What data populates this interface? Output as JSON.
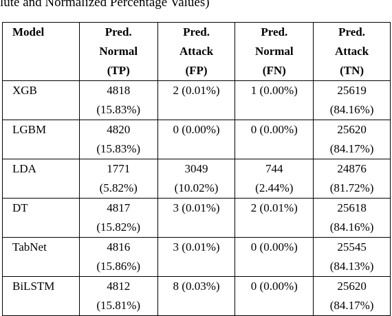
{
  "caption": "lute and Normalized Percentage Values)",
  "table": {
    "headers": [
      {
        "lines": [
          "Model"
        ]
      },
      {
        "lines": [
          "Pred.",
          "Normal",
          "(TP)"
        ]
      },
      {
        "lines": [
          "Pred.",
          "Attack",
          "(FP)"
        ]
      },
      {
        "lines": [
          "Pred.",
          "Normal",
          "(FN)"
        ]
      },
      {
        "lines": [
          "Pred.",
          "Attack",
          "(TN)"
        ]
      }
    ],
    "rows": [
      {
        "model": "XGB",
        "cells": [
          [
            "4818",
            "(15.83%)"
          ],
          [
            "2 (0.01%)"
          ],
          [
            "1 (0.00%)"
          ],
          [
            "25619",
            "(84.16%)"
          ]
        ]
      },
      {
        "model": "LGBM",
        "cells": [
          [
            "4820",
            "(15.83%)"
          ],
          [
            "0 (0.00%)"
          ],
          [
            "0 (0.00%)"
          ],
          [
            "25620",
            "(84.17%)"
          ]
        ]
      },
      {
        "model": "LDA",
        "cells": [
          [
            "1771",
            "(5.82%)"
          ],
          [
            "3049",
            "(10.02%)"
          ],
          [
            "744",
            "(2.44%)"
          ],
          [
            "24876",
            "(81.72%)"
          ]
        ]
      },
      {
        "model": "DT",
        "cells": [
          [
            "4817",
            "(15.82%)"
          ],
          [
            "3 (0.01%)"
          ],
          [
            "2 (0.01%)"
          ],
          [
            "25618",
            "(84.16%)"
          ]
        ]
      },
      {
        "model": "TabNet",
        "cells": [
          [
            "4816",
            "(15.86%)"
          ],
          [
            "3 (0.01%)"
          ],
          [
            "0 (0.00%)"
          ],
          [
            "25545",
            "(84.13%)"
          ]
        ]
      },
      {
        "model": "BiLSTM",
        "cells": [
          [
            "4812",
            "(15.81%)"
          ],
          [
            "8 (0.03%)"
          ],
          [
            "0 (0.00%)"
          ],
          [
            "25620",
            "(84.17%)"
          ]
        ]
      }
    ]
  }
}
